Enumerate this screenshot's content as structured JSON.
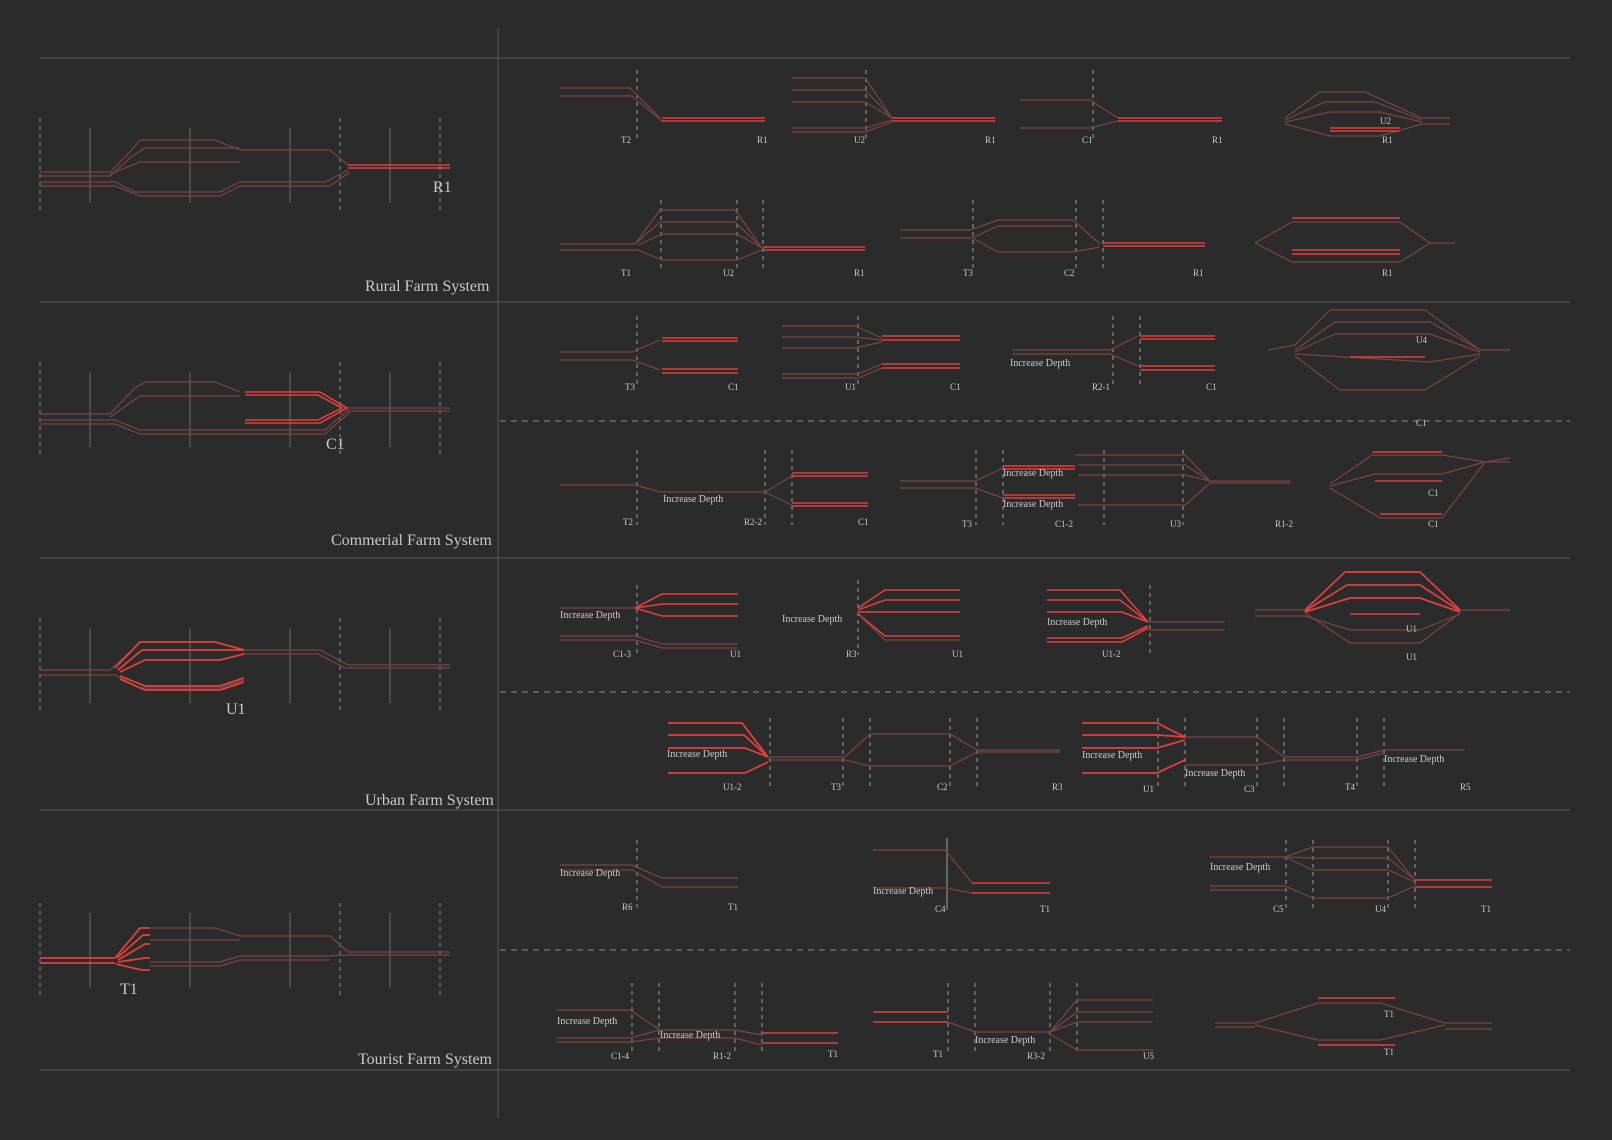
{
  "colors": {
    "background": "#2b2b2b",
    "muted_line": "#7a4440",
    "highlight_line": "#e0403c",
    "divider": "#5a5a5a",
    "dash": "#8a8a8a",
    "text": "#c9c9c9"
  },
  "sections": [
    {
      "title": "Rural Farm System",
      "main_label": "R1"
    },
    {
      "title": "Commerial Farm System",
      "main_label": "C1"
    },
    {
      "title": "Urban Farm System",
      "main_label": "U1"
    },
    {
      "title": "Tourist Farm System",
      "main_label": "T1"
    }
  ],
  "rural": {
    "r1a": [
      "T2",
      "R1"
    ],
    "r1b": [
      "U2",
      "R1"
    ],
    "r1c": [
      "C1",
      "R1"
    ],
    "r1d": [
      "U2",
      "R1"
    ],
    "r2a": [
      "T1",
      "U2",
      "R1"
    ],
    "r2b": [
      "T3",
      "C2",
      "R1"
    ],
    "r2c": [
      "R1"
    ]
  },
  "commercial": {
    "c1a": [
      "T3",
      "C1"
    ],
    "c1b": [
      "U1",
      "C1"
    ],
    "c1c": [
      "Increase Depth",
      "R2-1",
      "C1"
    ],
    "c1d": [
      "U4",
      "C1"
    ],
    "c2a": [
      "T2",
      "Increase Depth",
      "R2-2",
      "C1"
    ],
    "c2b": [
      "T3",
      "Increase Depth",
      "Increase Depth",
      "C1-2",
      "U3",
      "R1-2"
    ],
    "c2c": [
      "C1",
      "C1"
    ]
  },
  "urban": {
    "u1a": [
      "Increase Depth",
      "C1-3",
      "U1"
    ],
    "u1b": [
      "Increase Depth",
      "R3",
      "U1"
    ],
    "u1c": [
      "Increase Depth",
      "U1-2"
    ],
    "u1d": [
      "U1",
      "U1"
    ],
    "u2a": [
      "Increase Depth",
      "U1-2",
      "T3",
      "C2",
      "R3"
    ],
    "u2b": [
      "Increase Depth",
      "Increase Depth",
      "Increase Depth",
      "U1",
      "C3",
      "T4",
      "R5"
    ]
  },
  "tourist": {
    "t1a": [
      "Increase Depth",
      "R6",
      "T1"
    ],
    "t1b": [
      "Increase Depth",
      "C4",
      "T1"
    ],
    "t1c": [
      "Increase Depth",
      "C5",
      "U4",
      "T1"
    ],
    "t2a": [
      "Increase Depth",
      "Increase Depth",
      "C1-4",
      "R1-2",
      "T1"
    ],
    "t2b": [
      "Increase Depth",
      "T1",
      "R3-2",
      "U5"
    ],
    "t2c": [
      "T1",
      "T1"
    ]
  }
}
